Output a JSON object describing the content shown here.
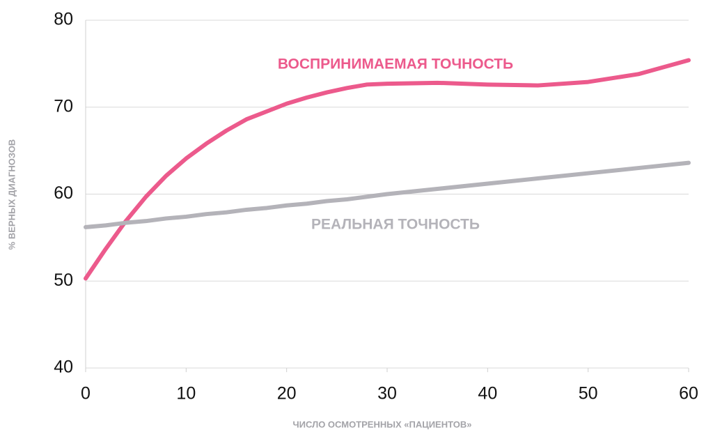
{
  "chart_data": {
    "type": "line",
    "x_label": "ЧИСЛО ОСМОТРЕННЫХ «ПАЦИЕНТОВ»",
    "y_label": "% ВЕРНЫХ ДИАГНОЗОВ",
    "x": [
      0,
      2,
      4,
      6,
      8,
      10,
      12,
      14,
      16,
      18,
      20,
      22,
      24,
      26,
      28,
      30,
      35,
      40,
      45,
      50,
      55,
      60
    ],
    "series": [
      {
        "name": "ВОСПРИНИМАЕМАЯ ТОЧНОСТЬ",
        "color": "#ec5a8c",
        "values": [
          50.3,
          53.7,
          56.9,
          59.7,
          62.1,
          64.1,
          65.8,
          67.3,
          68.6,
          69.5,
          70.4,
          71.1,
          71.7,
          72.2,
          72.6,
          72.7,
          72.8,
          72.6,
          72.5,
          72.9,
          73.8,
          75.4
        ]
      },
      {
        "name": "РЕАЛЬНАЯ ТОЧНОСТЬ",
        "color": "#b4b3b9",
        "values": [
          56.2,
          56.4,
          56.7,
          56.9,
          57.2,
          57.4,
          57.7,
          57.9,
          58.2,
          58.4,
          58.7,
          58.9,
          59.2,
          59.4,
          59.7,
          60.0,
          60.6,
          61.2,
          61.8,
          62.4,
          63.0,
          63.6
        ]
      }
    ],
    "xlim": [
      0,
      60
    ],
    "xticks": [
      0,
      10,
      20,
      30,
      40,
      50,
      60
    ],
    "ylim": [
      40,
      80
    ],
    "yticks": [
      40,
      50,
      60,
      70,
      80
    ],
    "grid": true
  }
}
